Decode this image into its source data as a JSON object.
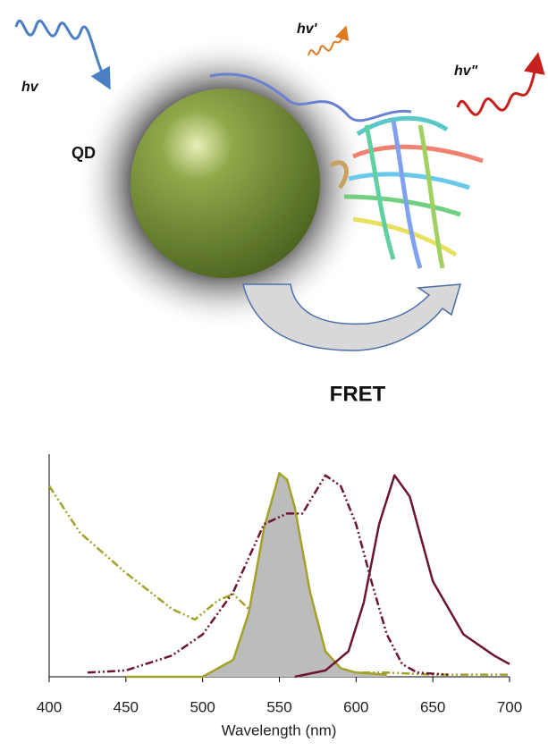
{
  "diagram": {
    "labels": {
      "excitation": "hv",
      "donor_emission": "hv'",
      "acceptor_emission": "hv\"",
      "donor": "QD",
      "transfer": "FRET"
    }
  },
  "chart_data": {
    "type": "line",
    "x_label": "Wavelength (nm)",
    "xlim": [
      400,
      700
    ],
    "xticks": [
      400,
      450,
      500,
      550,
      600,
      650,
      700
    ],
    "ylim": [
      0,
      1.05
    ],
    "series": [
      {
        "color": "#a3a12a",
        "dash": true,
        "x": [
          400,
          420,
          450,
          480,
          495,
          510,
          520,
          530,
          540,
          550,
          560,
          580,
          600,
          620,
          650,
          700
        ],
        "values": [
          0.9,
          0.68,
          0.49,
          0.32,
          0.27,
          0.36,
          0.39,
          0.32,
          0.18,
          0.09,
          0.04,
          0.02,
          0.02,
          0.02,
          0.01,
          0.01
        ]
      },
      {
        "color": "#a3a12a",
        "dash": false,
        "fill": "#bcbcbc",
        "x": [
          450,
          500,
          520,
          530,
          540,
          550,
          555,
          560,
          570,
          580,
          590,
          600,
          620
        ],
        "values": [
          0,
          0,
          0.08,
          0.3,
          0.7,
          0.96,
          0.93,
          0.8,
          0.4,
          0.12,
          0.04,
          0.02,
          0.01
        ]
      },
      {
        "color": "#6b1530",
        "dash": true,
        "x": [
          425,
          450,
          480,
          500,
          520,
          540,
          555,
          565,
          580,
          590,
          600,
          610,
          620,
          630,
          640,
          660
        ],
        "values": [
          0.02,
          0.03,
          0.1,
          0.2,
          0.4,
          0.72,
          0.77,
          0.77,
          0.95,
          0.9,
          0.72,
          0.45,
          0.2,
          0.06,
          0.02,
          0.01
        ]
      },
      {
        "color": "#6b1530",
        "dash": false,
        "x": [
          560,
          580,
          595,
          605,
          615,
          625,
          635,
          650,
          670,
          690,
          700
        ],
        "values": [
          0,
          0.03,
          0.12,
          0.35,
          0.72,
          0.95,
          0.85,
          0.45,
          0.2,
          0.1,
          0.06
        ]
      }
    ]
  }
}
